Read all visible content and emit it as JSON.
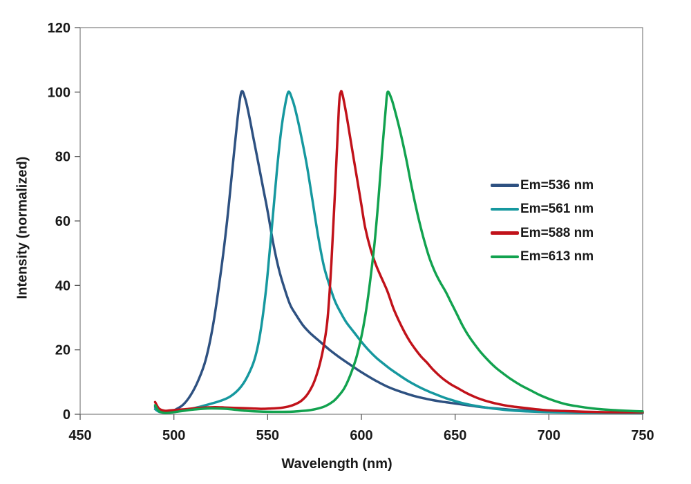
{
  "figure": {
    "background": "#ffffff",
    "frame_color": "#7f7f7f",
    "tick_color": "#595959",
    "text_color": "#191919"
  },
  "chart_data": {
    "type": "line",
    "title": "",
    "xlabel": "Wavelength (nm)",
    "ylabel": "Intensity (normalized)",
    "xlim": [
      450,
      750
    ],
    "ylim": [
      0,
      120
    ],
    "xticks": [
      450,
      500,
      550,
      600,
      650,
      700,
      750
    ],
    "yticks": [
      0,
      20,
      40,
      60,
      80,
      100,
      120
    ],
    "grid": false,
    "legend_position": "inside-right",
    "series": [
      {
        "name": "Em=536 nm",
        "color": "#2E5181",
        "points": [
          [
            490,
            2.3
          ],
          [
            492,
            1.2
          ],
          [
            495,
            0.8
          ],
          [
            498,
            0.8
          ],
          [
            501,
            1.5
          ],
          [
            505,
            3
          ],
          [
            509,
            6
          ],
          [
            513,
            10.5
          ],
          [
            517,
            17
          ],
          [
            521,
            28
          ],
          [
            525,
            44
          ],
          [
            528,
            58
          ],
          [
            531,
            75
          ],
          [
            534,
            92
          ],
          [
            536,
            100
          ],
          [
            538,
            98
          ],
          [
            540,
            93
          ],
          [
            542,
            87
          ],
          [
            545,
            78
          ],
          [
            548,
            69
          ],
          [
            550,
            63
          ],
          [
            553,
            53
          ],
          [
            556,
            45
          ],
          [
            559,
            39
          ],
          [
            562,
            34
          ],
          [
            565,
            31
          ],
          [
            569,
            27.5
          ],
          [
            573,
            25
          ],
          [
            578,
            22.5
          ],
          [
            583,
            20
          ],
          [
            588,
            17.8
          ],
          [
            593,
            15.8
          ],
          [
            598,
            13.8
          ],
          [
            603,
            12
          ],
          [
            608,
            10.3
          ],
          [
            613,
            8.8
          ],
          [
            618,
            7.6
          ],
          [
            623,
            6.6
          ],
          [
            628,
            5.7
          ],
          [
            633,
            5
          ],
          [
            638,
            4.4
          ],
          [
            643,
            3.9
          ],
          [
            648,
            3.5
          ],
          [
            653,
            3.1
          ],
          [
            658,
            2.7
          ],
          [
            663,
            2.3
          ],
          [
            668,
            2
          ],
          [
            674,
            1.7
          ],
          [
            680,
            1.4
          ],
          [
            687,
            1.2
          ],
          [
            694,
            1
          ],
          [
            701,
            0.85
          ],
          [
            710,
            0.7
          ],
          [
            720,
            0.6
          ],
          [
            732,
            0.5
          ],
          [
            750,
            0.4
          ]
        ]
      },
      {
        "name": "Em=561 nm",
        "color": "#16989F",
        "points": [
          [
            490,
            1.6
          ],
          [
            492,
            0.8
          ],
          [
            495,
            0.5
          ],
          [
            498,
            0.6
          ],
          [
            502,
            0.9
          ],
          [
            506,
            1.3
          ],
          [
            510,
            1.8
          ],
          [
            515,
            2.5
          ],
          [
            520,
            3.3
          ],
          [
            525,
            4.2
          ],
          [
            530,
            5.5
          ],
          [
            535,
            8
          ],
          [
            539,
            11.5
          ],
          [
            543,
            17
          ],
          [
            546,
            25
          ],
          [
            549,
            38
          ],
          [
            551,
            50
          ],
          [
            553,
            63
          ],
          [
            555,
            76
          ],
          [
            557,
            87
          ],
          [
            559,
            95
          ],
          [
            561,
            100
          ],
          [
            563,
            98
          ],
          [
            565,
            94
          ],
          [
            568,
            86
          ],
          [
            571,
            77
          ],
          [
            574,
            66
          ],
          [
            577,
            55
          ],
          [
            580,
            46
          ],
          [
            583,
            40
          ],
          [
            586,
            35
          ],
          [
            589,
            31.5
          ],
          [
            592,
            28.5
          ],
          [
            596,
            25.5
          ],
          [
            600,
            22.5
          ],
          [
            604,
            19.8
          ],
          [
            608,
            17.5
          ],
          [
            612,
            15.6
          ],
          [
            616,
            13.8
          ],
          [
            620,
            12.2
          ],
          [
            625,
            10.3
          ],
          [
            630,
            8.7
          ],
          [
            635,
            7.3
          ],
          [
            640,
            6.1
          ],
          [
            645,
            5
          ],
          [
            650,
            4.1
          ],
          [
            655,
            3.3
          ],
          [
            660,
            2.7
          ],
          [
            665,
            2.2
          ],
          [
            670,
            1.8
          ],
          [
            676,
            1.4
          ],
          [
            682,
            1.1
          ],
          [
            690,
            0.85
          ],
          [
            700,
            0.65
          ],
          [
            715,
            0.5
          ],
          [
            732,
            0.4
          ],
          [
            750,
            0.35
          ]
        ]
      },
      {
        "name": "Em=588 nm",
        "color": "#C1121A",
        "points": [
          [
            490,
            3.8
          ],
          [
            492,
            1.8
          ],
          [
            495,
            1.1
          ],
          [
            498,
            1.2
          ],
          [
            502,
            1.4
          ],
          [
            507,
            1.6
          ],
          [
            512,
            1.9
          ],
          [
            517,
            2.1
          ],
          [
            522,
            2.2
          ],
          [
            527,
            2.1
          ],
          [
            532,
            2
          ],
          [
            537,
            1.9
          ],
          [
            542,
            1.8
          ],
          [
            547,
            1.7
          ],
          [
            552,
            1.8
          ],
          [
            557,
            2
          ],
          [
            561,
            2.4
          ],
          [
            565,
            3.2
          ],
          [
            568,
            4.2
          ],
          [
            571,
            6
          ],
          [
            574,
            9
          ],
          [
            576,
            12
          ],
          [
            578,
            16
          ],
          [
            580,
            21.5
          ],
          [
            582,
            30
          ],
          [
            584,
            47
          ],
          [
            586,
            70
          ],
          [
            588,
            95
          ],
          [
            589,
            100
          ],
          [
            590,
            99
          ],
          [
            592,
            93
          ],
          [
            594,
            86
          ],
          [
            596,
            79
          ],
          [
            598,
            72
          ],
          [
            600,
            65
          ],
          [
            602,
            58
          ],
          [
            605,
            51
          ],
          [
            608,
            46
          ],
          [
            611,
            42
          ],
          [
            614,
            38
          ],
          [
            617,
            33
          ],
          [
            620,
            29
          ],
          [
            623,
            25.5
          ],
          [
            626,
            22.5
          ],
          [
            629,
            20
          ],
          [
            632,
            17.8
          ],
          [
            635,
            16
          ],
          [
            638,
            14
          ],
          [
            641,
            12.3
          ],
          [
            644,
            10.8
          ],
          [
            648,
            9.2
          ],
          [
            652,
            7.9
          ],
          [
            656,
            6.6
          ],
          [
            660,
            5.5
          ],
          [
            664,
            4.6
          ],
          [
            668,
            3.9
          ],
          [
            672,
            3.3
          ],
          [
            677,
            2.7
          ],
          [
            682,
            2.3
          ],
          [
            688,
            1.9
          ],
          [
            694,
            1.5
          ],
          [
            700,
            1.2
          ],
          [
            708,
            1
          ],
          [
            718,
            0.8
          ],
          [
            730,
            0.65
          ],
          [
            750,
            0.55
          ]
        ]
      },
      {
        "name": "Em=613 nm",
        "color": "#12A24F",
        "points": [
          [
            490,
            2.8
          ],
          [
            492,
            1
          ],
          [
            495,
            0.4
          ],
          [
            498,
            0.5
          ],
          [
            503,
            0.9
          ],
          [
            508,
            1.3
          ],
          [
            513,
            1.6
          ],
          [
            518,
            1.8
          ],
          [
            523,
            1.8
          ],
          [
            528,
            1.7
          ],
          [
            533,
            1.4
          ],
          [
            538,
            1.1
          ],
          [
            543,
            0.9
          ],
          [
            548,
            0.8
          ],
          [
            553,
            0.75
          ],
          [
            558,
            0.75
          ],
          [
            563,
            0.8
          ],
          [
            568,
            1
          ],
          [
            573,
            1.3
          ],
          [
            577,
            1.8
          ],
          [
            581,
            2.6
          ],
          [
            585,
            4
          ],
          [
            588,
            5.8
          ],
          [
            591,
            8.2
          ],
          [
            594,
            12
          ],
          [
            597,
            17
          ],
          [
            599,
            21.5
          ],
          [
            601,
            27
          ],
          [
            603,
            34
          ],
          [
            605,
            43
          ],
          [
            607,
            53
          ],
          [
            609,
            66
          ],
          [
            611,
            81
          ],
          [
            613,
            95
          ],
          [
            614,
            100
          ],
          [
            616,
            98
          ],
          [
            618,
            94
          ],
          [
            621,
            87
          ],
          [
            624,
            79
          ],
          [
            627,
            70
          ],
          [
            630,
            62
          ],
          [
            633,
            55
          ],
          [
            636,
            49
          ],
          [
            639,
            44.5
          ],
          [
            642,
            41
          ],
          [
            645,
            38
          ],
          [
            648,
            34.5
          ],
          [
            651,
            31
          ],
          [
            654,
            27.5
          ],
          [
            657,
            24.5
          ],
          [
            660,
            22
          ],
          [
            664,
            19
          ],
          [
            668,
            16.5
          ],
          [
            672,
            14.3
          ],
          [
            676,
            12.5
          ],
          [
            680,
            10.8
          ],
          [
            685,
            9
          ],
          [
            690,
            7.5
          ],
          [
            695,
            6
          ],
          [
            700,
            4.8
          ],
          [
            705,
            3.8
          ],
          [
            710,
            3
          ],
          [
            716,
            2.4
          ],
          [
            722,
            1.9
          ],
          [
            729,
            1.5
          ],
          [
            737,
            1.2
          ],
          [
            744,
            1
          ],
          [
            750,
            0.9
          ]
        ]
      }
    ]
  }
}
